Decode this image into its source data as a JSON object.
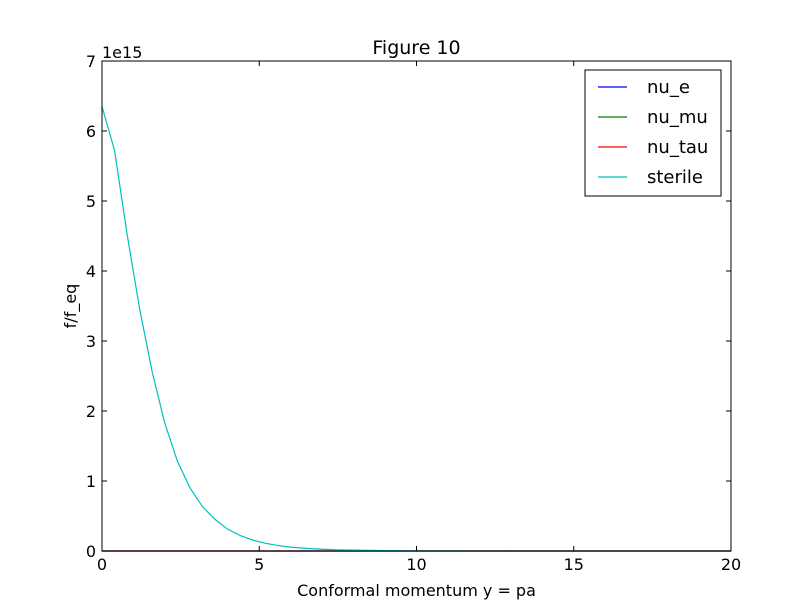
{
  "chart_data": {
    "type": "line",
    "title": "Figure 10",
    "xlabel": "Conformal momentum y = pa",
    "ylabel": "f/f_eq",
    "y_offset_label": "1e15",
    "xlim": [
      0,
      20
    ],
    "ylim": [
      0,
      7000000000000000.0
    ],
    "x_ticks": [
      0,
      5,
      10,
      15,
      20
    ],
    "y_ticks": [
      0,
      1000000000000000.0,
      2000000000000000.0,
      3000000000000000.0,
      4000000000000000.0,
      5000000000000000.0,
      6000000000000000.0,
      7000000000000000.0
    ],
    "x_tick_labels": [
      "0",
      "5",
      "10",
      "15",
      "20"
    ],
    "y_tick_labels": [
      "0",
      "1",
      "2",
      "3",
      "4",
      "5",
      "6",
      "7"
    ],
    "grid": false,
    "legend_position": "top-right",
    "x": [
      0,
      0.4,
      0.8,
      1.2,
      1.6,
      2.0,
      2.4,
      2.8,
      3.2,
      3.6,
      4.0,
      4.4,
      4.8,
      5.2,
      5.6,
      6.0,
      6.5,
      7.0,
      7.5,
      8.0,
      9.0,
      10.0,
      12.0,
      14.0,
      16.0,
      18.0,
      20.0
    ],
    "series": [
      {
        "name": "nu_e",
        "color": "#0000ff",
        "values": [
          0,
          0,
          0,
          0,
          0,
          0,
          0,
          0,
          0,
          0,
          0,
          0,
          0,
          0,
          0,
          0,
          0,
          0,
          0,
          0,
          0,
          0,
          0,
          0,
          0,
          0,
          0
        ]
      },
      {
        "name": "nu_mu",
        "color": "#008000",
        "values": [
          0,
          0,
          0,
          0,
          0,
          0,
          0,
          0,
          0,
          0,
          0,
          0,
          0,
          0,
          0,
          0,
          0,
          0,
          0,
          0,
          0,
          0,
          0,
          0,
          0,
          0,
          0
        ]
      },
      {
        "name": "nu_tau",
        "color": "#ff0000",
        "values": [
          0,
          0,
          0,
          0,
          0,
          0,
          0,
          0,
          0,
          0,
          0,
          0,
          0,
          0,
          0,
          0,
          0,
          0,
          0,
          0,
          0,
          0,
          0,
          0,
          0,
          0,
          0
        ]
      },
      {
        "name": "sterile",
        "color": "#00bfbf",
        "values": [
          6350000000000000.0,
          5720000000000000.0,
          4520000000000000.0,
          3450000000000000.0,
          2550000000000000.0,
          1820000000000000.0,
          1280000000000000.0,
          900000000000000.0,
          630000000000000.0,
          450000000000000.0,
          310000000000000.0,
          220000000000000.0,
          155000000000000.0,
          110000000000000.0,
          78000000000000.0,
          55000000000000.0,
          37000000000000.0,
          25000000000000.0,
          17000000000000.0,
          12000000000000.0,
          6000000000000.0,
          3000000000000.0,
          800000000000.0,
          200000000000.0,
          50000000000.0,
          10000000000.0,
          0.0
        ]
      }
    ]
  }
}
